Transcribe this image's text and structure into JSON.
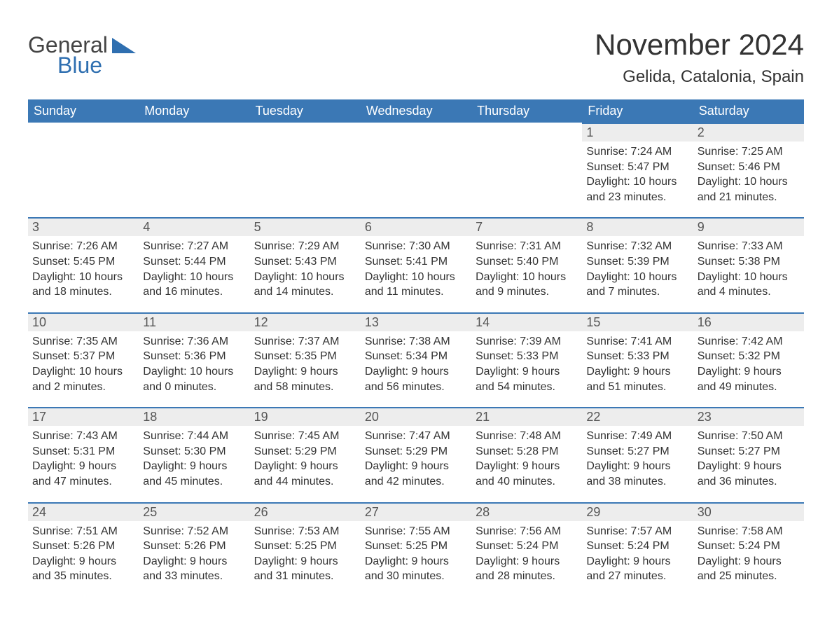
{
  "logo": {
    "text_a": "General",
    "text_b": "Blue"
  },
  "title": "November 2024",
  "location": "Gelida, Catalonia, Spain",
  "colors": {
    "header_bg": "#3b78b5",
    "header_text": "#ffffff",
    "day_num_bg": "#ededed",
    "day_num_text": "#555555",
    "body_text": "#333333",
    "rule": "#3b78b5",
    "logo_gray": "#444444",
    "logo_blue": "#2f6fb0",
    "page_bg": "#ffffff"
  },
  "typography": {
    "title_fontsize": 42,
    "location_fontsize": 24,
    "day_header_fontsize": 18,
    "day_num_fontsize": 18,
    "body_fontsize": 16,
    "logo_fontsize": 32
  },
  "day_headers": [
    "Sunday",
    "Monday",
    "Tuesday",
    "Wednesday",
    "Thursday",
    "Friday",
    "Saturday"
  ],
  "weeks": [
    [
      null,
      null,
      null,
      null,
      null,
      {
        "n": "1",
        "sunrise": "7:24 AM",
        "sunset": "5:47 PM",
        "daylight_h": 10,
        "daylight_m": 23
      },
      {
        "n": "2",
        "sunrise": "7:25 AM",
        "sunset": "5:46 PM",
        "daylight_h": 10,
        "daylight_m": 21
      }
    ],
    [
      {
        "n": "3",
        "sunrise": "7:26 AM",
        "sunset": "5:45 PM",
        "daylight_h": 10,
        "daylight_m": 18
      },
      {
        "n": "4",
        "sunrise": "7:27 AM",
        "sunset": "5:44 PM",
        "daylight_h": 10,
        "daylight_m": 16
      },
      {
        "n": "5",
        "sunrise": "7:29 AM",
        "sunset": "5:43 PM",
        "daylight_h": 10,
        "daylight_m": 14
      },
      {
        "n": "6",
        "sunrise": "7:30 AM",
        "sunset": "5:41 PM",
        "daylight_h": 10,
        "daylight_m": 11
      },
      {
        "n": "7",
        "sunrise": "7:31 AM",
        "sunset": "5:40 PM",
        "daylight_h": 10,
        "daylight_m": 9
      },
      {
        "n": "8",
        "sunrise": "7:32 AM",
        "sunset": "5:39 PM",
        "daylight_h": 10,
        "daylight_m": 7
      },
      {
        "n": "9",
        "sunrise": "7:33 AM",
        "sunset": "5:38 PM",
        "daylight_h": 10,
        "daylight_m": 4
      }
    ],
    [
      {
        "n": "10",
        "sunrise": "7:35 AM",
        "sunset": "5:37 PM",
        "daylight_h": 10,
        "daylight_m": 2
      },
      {
        "n": "11",
        "sunrise": "7:36 AM",
        "sunset": "5:36 PM",
        "daylight_h": 10,
        "daylight_m": 0
      },
      {
        "n": "12",
        "sunrise": "7:37 AM",
        "sunset": "5:35 PM",
        "daylight_h": 9,
        "daylight_m": 58
      },
      {
        "n": "13",
        "sunrise": "7:38 AM",
        "sunset": "5:34 PM",
        "daylight_h": 9,
        "daylight_m": 56
      },
      {
        "n": "14",
        "sunrise": "7:39 AM",
        "sunset": "5:33 PM",
        "daylight_h": 9,
        "daylight_m": 54
      },
      {
        "n": "15",
        "sunrise": "7:41 AM",
        "sunset": "5:33 PM",
        "daylight_h": 9,
        "daylight_m": 51
      },
      {
        "n": "16",
        "sunrise": "7:42 AM",
        "sunset": "5:32 PM",
        "daylight_h": 9,
        "daylight_m": 49
      }
    ],
    [
      {
        "n": "17",
        "sunrise": "7:43 AM",
        "sunset": "5:31 PM",
        "daylight_h": 9,
        "daylight_m": 47
      },
      {
        "n": "18",
        "sunrise": "7:44 AM",
        "sunset": "5:30 PM",
        "daylight_h": 9,
        "daylight_m": 45
      },
      {
        "n": "19",
        "sunrise": "7:45 AM",
        "sunset": "5:29 PM",
        "daylight_h": 9,
        "daylight_m": 44
      },
      {
        "n": "20",
        "sunrise": "7:47 AM",
        "sunset": "5:29 PM",
        "daylight_h": 9,
        "daylight_m": 42
      },
      {
        "n": "21",
        "sunrise": "7:48 AM",
        "sunset": "5:28 PM",
        "daylight_h": 9,
        "daylight_m": 40
      },
      {
        "n": "22",
        "sunrise": "7:49 AM",
        "sunset": "5:27 PM",
        "daylight_h": 9,
        "daylight_m": 38
      },
      {
        "n": "23",
        "sunrise": "7:50 AM",
        "sunset": "5:27 PM",
        "daylight_h": 9,
        "daylight_m": 36
      }
    ],
    [
      {
        "n": "24",
        "sunrise": "7:51 AM",
        "sunset": "5:26 PM",
        "daylight_h": 9,
        "daylight_m": 35
      },
      {
        "n": "25",
        "sunrise": "7:52 AM",
        "sunset": "5:26 PM",
        "daylight_h": 9,
        "daylight_m": 33
      },
      {
        "n": "26",
        "sunrise": "7:53 AM",
        "sunset": "5:25 PM",
        "daylight_h": 9,
        "daylight_m": 31
      },
      {
        "n": "27",
        "sunrise": "7:55 AM",
        "sunset": "5:25 PM",
        "daylight_h": 9,
        "daylight_m": 30
      },
      {
        "n": "28",
        "sunrise": "7:56 AM",
        "sunset": "5:24 PM",
        "daylight_h": 9,
        "daylight_m": 28
      },
      {
        "n": "29",
        "sunrise": "7:57 AM",
        "sunset": "5:24 PM",
        "daylight_h": 9,
        "daylight_m": 27
      },
      {
        "n": "30",
        "sunrise": "7:58 AM",
        "sunset": "5:24 PM",
        "daylight_h": 9,
        "daylight_m": 25
      }
    ]
  ],
  "labels": {
    "sunrise_prefix": "Sunrise: ",
    "sunset_prefix": "Sunset: ",
    "daylight_prefix": "Daylight: ",
    "hours_word": " hours",
    "and_word": "and ",
    "minutes_suffix": " minutes."
  }
}
